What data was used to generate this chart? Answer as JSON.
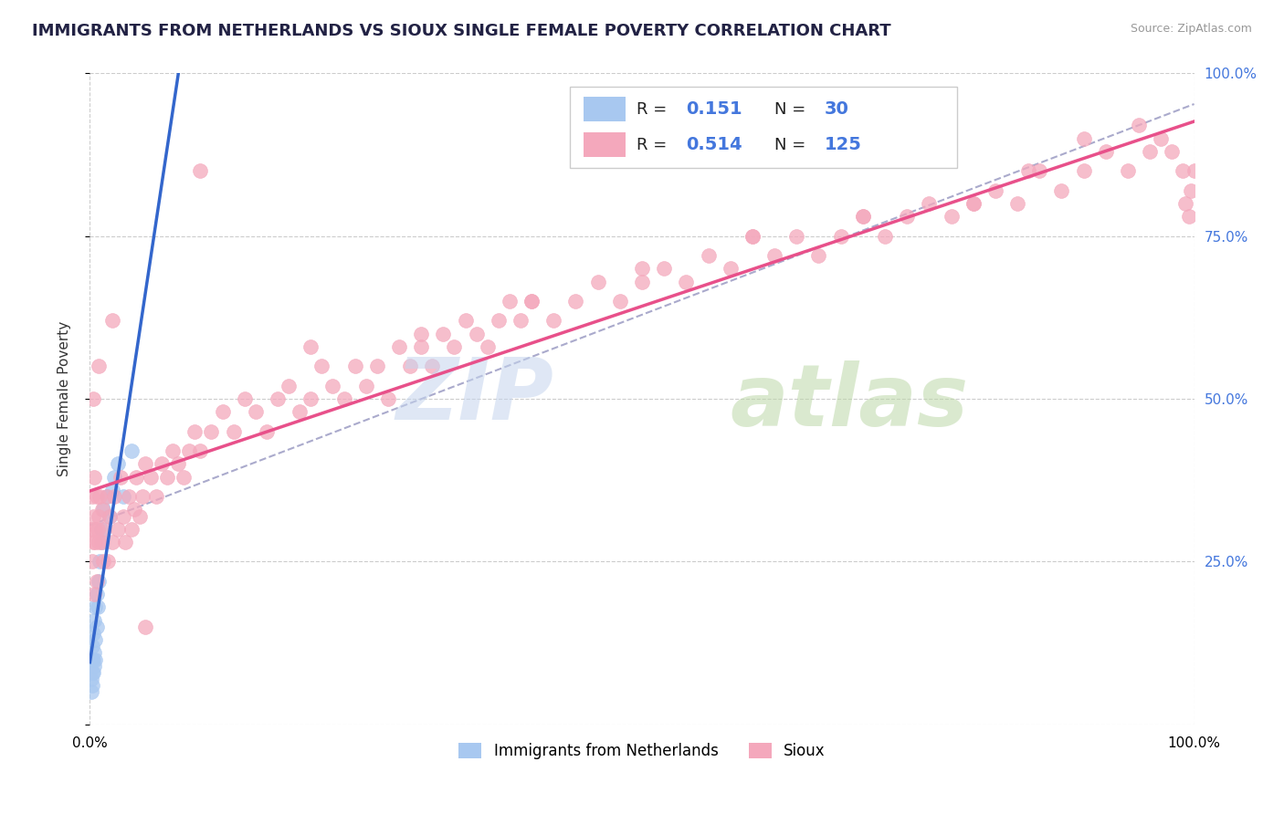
{
  "title": "IMMIGRANTS FROM NETHERLANDS VS SIOUX SINGLE FEMALE POVERTY CORRELATION CHART",
  "source": "Source: ZipAtlas.com",
  "ylabel": "Single Female Poverty",
  "R_blue": 0.151,
  "N_blue": 30,
  "R_pink": 0.514,
  "N_pink": 125,
  "blue_color": "#A8C8F0",
  "pink_color": "#F4A8BC",
  "blue_line_color": "#3366CC",
  "pink_line_color": "#E8508A",
  "dashed_line_color": "#AAAACC",
  "watermark_zip_color": "#C8D8F0",
  "watermark_atlas_color": "#C8DCA8",
  "background_color": "#FFFFFF",
  "title_color": "#222244",
  "title_fontsize": 13,
  "right_tick_color": "#4477DD",
  "legend_R_color": "#000000",
  "legend_N_color": "#4477DD",
  "legend_bottom": [
    "Immigrants from Netherlands",
    "Sioux"
  ],
  "blue_x": [
    0.001,
    0.001,
    0.002,
    0.002,
    0.002,
    0.002,
    0.003,
    0.003,
    0.003,
    0.004,
    0.004,
    0.004,
    0.005,
    0.005,
    0.005,
    0.006,
    0.006,
    0.007,
    0.008,
    0.009,
    0.01,
    0.011,
    0.012,
    0.015,
    0.018,
    0.02,
    0.022,
    0.025,
    0.03,
    0.038
  ],
  "blue_y": [
    0.05,
    0.07,
    0.06,
    0.08,
    0.1,
    0.12,
    0.08,
    0.1,
    0.14,
    0.09,
    0.11,
    0.16,
    0.1,
    0.13,
    0.18,
    0.15,
    0.2,
    0.18,
    0.22,
    0.25,
    0.3,
    0.28,
    0.33,
    0.35,
    0.32,
    0.36,
    0.38,
    0.4,
    0.35,
    0.42
  ],
  "pink_x": [
    0.001,
    0.002,
    0.002,
    0.003,
    0.003,
    0.004,
    0.004,
    0.005,
    0.005,
    0.006,
    0.006,
    0.007,
    0.008,
    0.008,
    0.009,
    0.01,
    0.011,
    0.012,
    0.013,
    0.015,
    0.016,
    0.018,
    0.02,
    0.022,
    0.025,
    0.028,
    0.03,
    0.032,
    0.035,
    0.038,
    0.04,
    0.042,
    0.045,
    0.048,
    0.05,
    0.055,
    0.06,
    0.065,
    0.07,
    0.075,
    0.08,
    0.085,
    0.09,
    0.095,
    0.1,
    0.11,
    0.12,
    0.13,
    0.14,
    0.15,
    0.16,
    0.17,
    0.18,
    0.19,
    0.2,
    0.21,
    0.22,
    0.23,
    0.24,
    0.25,
    0.26,
    0.27,
    0.28,
    0.29,
    0.3,
    0.31,
    0.32,
    0.33,
    0.34,
    0.35,
    0.36,
    0.37,
    0.38,
    0.39,
    0.4,
    0.42,
    0.44,
    0.46,
    0.48,
    0.5,
    0.52,
    0.54,
    0.56,
    0.58,
    0.6,
    0.62,
    0.64,
    0.66,
    0.68,
    0.7,
    0.72,
    0.74,
    0.76,
    0.78,
    0.8,
    0.82,
    0.84,
    0.86,
    0.88,
    0.9,
    0.92,
    0.94,
    0.96,
    0.97,
    0.98,
    0.99,
    0.992,
    0.995,
    0.997,
    1.0,
    0.003,
    0.008,
    0.02,
    0.05,
    0.1,
    0.2,
    0.3,
    0.4,
    0.5,
    0.6,
    0.7,
    0.8,
    0.85,
    0.9,
    0.95
  ],
  "pink_y": [
    0.3,
    0.25,
    0.35,
    0.28,
    0.32,
    0.2,
    0.38,
    0.3,
    0.28,
    0.35,
    0.22,
    0.3,
    0.32,
    0.28,
    0.35,
    0.28,
    0.33,
    0.25,
    0.3,
    0.35,
    0.25,
    0.32,
    0.28,
    0.35,
    0.3,
    0.38,
    0.32,
    0.28,
    0.35,
    0.3,
    0.33,
    0.38,
    0.32,
    0.35,
    0.4,
    0.38,
    0.35,
    0.4,
    0.38,
    0.42,
    0.4,
    0.38,
    0.42,
    0.45,
    0.42,
    0.45,
    0.48,
    0.45,
    0.5,
    0.48,
    0.45,
    0.5,
    0.52,
    0.48,
    0.5,
    0.55,
    0.52,
    0.5,
    0.55,
    0.52,
    0.55,
    0.5,
    0.58,
    0.55,
    0.58,
    0.55,
    0.6,
    0.58,
    0.62,
    0.6,
    0.58,
    0.62,
    0.65,
    0.62,
    0.65,
    0.62,
    0.65,
    0.68,
    0.65,
    0.68,
    0.7,
    0.68,
    0.72,
    0.7,
    0.75,
    0.72,
    0.75,
    0.72,
    0.75,
    0.78,
    0.75,
    0.78,
    0.8,
    0.78,
    0.8,
    0.82,
    0.8,
    0.85,
    0.82,
    0.85,
    0.88,
    0.85,
    0.88,
    0.9,
    0.88,
    0.85,
    0.8,
    0.78,
    0.82,
    0.85,
    0.5,
    0.55,
    0.62,
    0.15,
    0.85,
    0.58,
    0.6,
    0.65,
    0.7,
    0.75,
    0.78,
    0.8,
    0.85,
    0.9,
    0.92
  ]
}
